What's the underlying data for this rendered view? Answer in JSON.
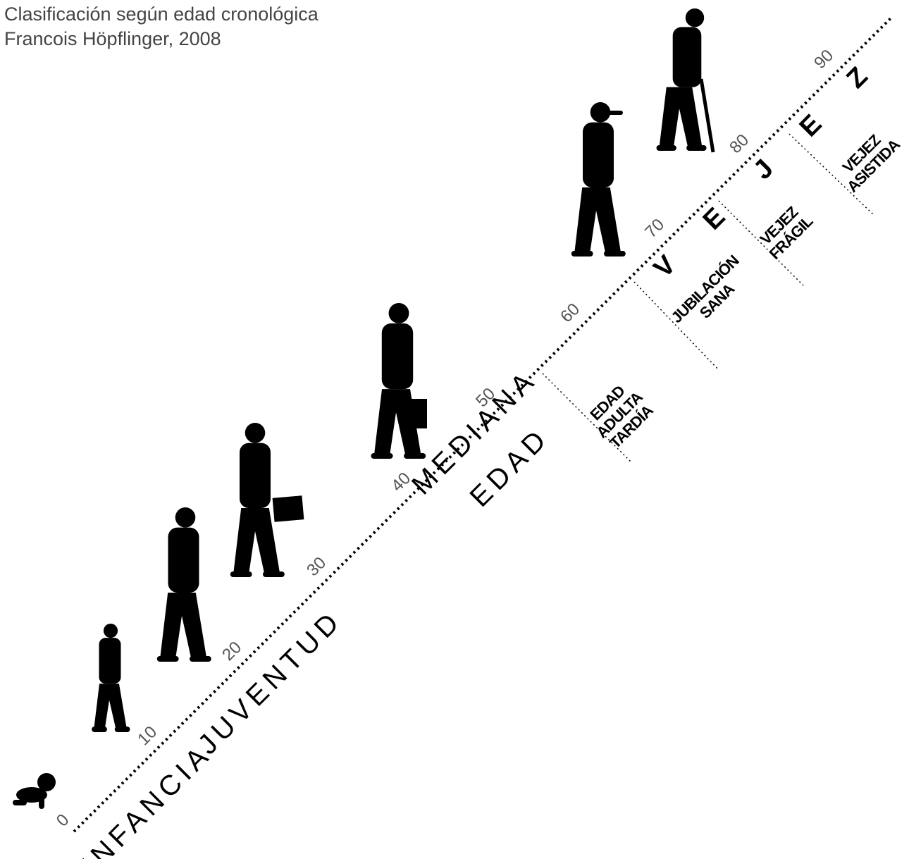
{
  "header": {
    "title": "Clasificación según edad cronológica",
    "author": "Francois Höpflinger, 2008"
  },
  "scale": {
    "ages": [
      0,
      10,
      20,
      30,
      40,
      50,
      60,
      70,
      80,
      90
    ]
  },
  "stages": [
    {
      "lines": [
        "INFANCIA"
      ]
    },
    {
      "lines": [
        "JUVENTUD"
      ]
    },
    {
      "lines": [
        "MEDIANA",
        "EDAD"
      ]
    },
    {
      "letters": [
        "V",
        "E",
        "J",
        "E",
        "Z"
      ]
    }
  ],
  "substages": [
    {
      "lines": [
        "EDAD",
        "ADULTA",
        "TARDÍA"
      ]
    },
    {
      "lines": [
        "JUBILACIÓN",
        "SANA"
      ]
    },
    {
      "lines": [
        "VEJEZ",
        "FRÁGIL"
      ]
    },
    {
      "lines": [
        "VEJEZ",
        "ASISTIDA"
      ]
    }
  ]
}
